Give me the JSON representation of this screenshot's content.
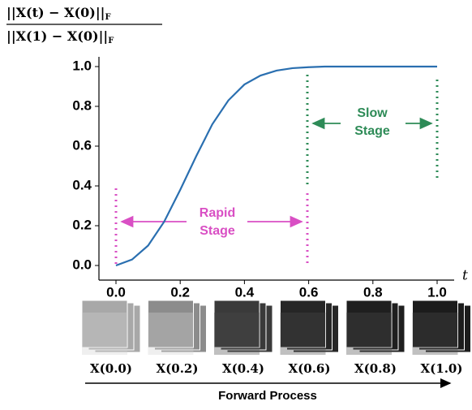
{
  "chart_data": {
    "type": "line",
    "ylabel_numerator": "||X(t) − X(0)||",
    "ylabel_denominator": "||X(1) − X(0)||",
    "ylabel_subscript": "F",
    "xlabel": "t",
    "x": [
      0,
      0.05,
      0.1,
      0.15,
      0.2,
      0.25,
      0.3,
      0.35,
      0.4,
      0.45,
      0.5,
      0.55,
      0.6,
      0.65,
      0.7,
      0.75,
      0.8,
      0.85,
      0.9,
      0.95,
      1.0
    ],
    "series": [
      {
        "color": "#2a6fb0",
        "values": [
          0,
          0.03,
          0.1,
          0.22,
          0.38,
          0.55,
          0.71,
          0.83,
          0.91,
          0.955,
          0.98,
          0.992,
          0.997,
          1,
          1,
          1,
          1,
          1,
          1,
          1,
          1
        ]
      }
    ],
    "xlim": [
      0,
      1
    ],
    "ylim": [
      0,
      1
    ],
    "xticks": [
      {
        "value": 0,
        "label": "0.0"
      },
      {
        "value": 0.2,
        "label": "0.2"
      },
      {
        "value": 0.4,
        "label": "0.4"
      },
      {
        "value": 0.6,
        "label": "0.6"
      },
      {
        "value": 0.8,
        "label": "0.8"
      },
      {
        "value": 1,
        "label": "1.0"
      }
    ],
    "yticks": [
      {
        "value": 0,
        "label": "0.0"
      },
      {
        "value": 0.2,
        "label": "0.2"
      },
      {
        "value": 0.4,
        "label": "0.4"
      },
      {
        "value": 0.6,
        "label": "0.6"
      },
      {
        "value": 0.8,
        "label": "0.8"
      },
      {
        "value": 1,
        "label": "1.0"
      }
    ],
    "annotations": [
      {
        "text": [
          "Rapid",
          "Stage"
        ],
        "color": "#d94fc4"
      },
      {
        "text": [
          "Slow",
          "Stage"
        ],
        "color": "#2e8b57"
      }
    ],
    "thumbnails": [
      "X(0.0)",
      "X(0.2)",
      "X(0.4)",
      "X(0.6)",
      "X(0.8)",
      "X(1.0)"
    ],
    "process_label": "Forward Process"
  }
}
